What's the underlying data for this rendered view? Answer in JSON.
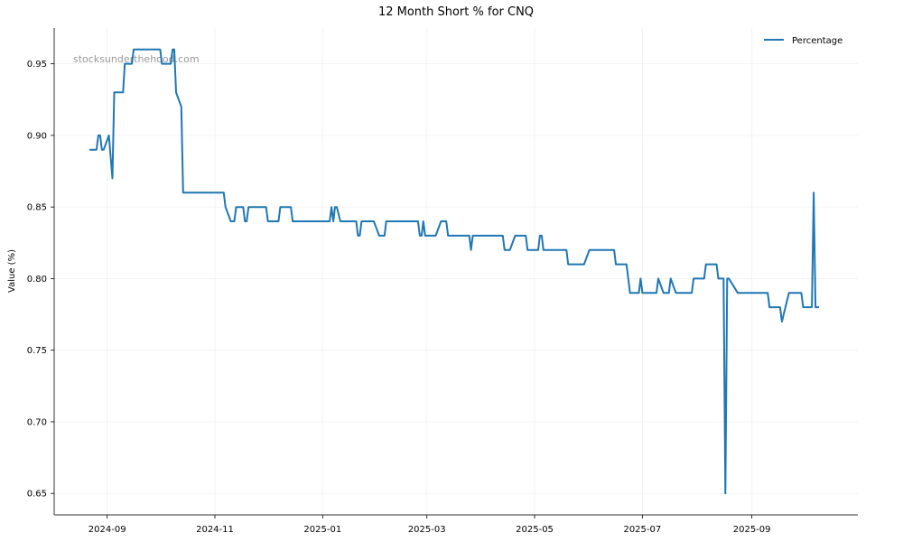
{
  "chart_data": {
    "type": "line",
    "title": "12 Month Short % for CNQ",
    "xlabel": "",
    "ylabel": "Value (%)",
    "watermark": "stocksunderthehood.com",
    "xlim": [
      "2024-08-02",
      "2025-10-31"
    ],
    "ylim": [
      0.635,
      0.975
    ],
    "x_ticks": [
      {
        "date": "2024-09-01",
        "label": "2024-09"
      },
      {
        "date": "2024-11-01",
        "label": "2024-11"
      },
      {
        "date": "2025-01-01",
        "label": "2025-01"
      },
      {
        "date": "2025-03-01",
        "label": "2025-03"
      },
      {
        "date": "2025-05-01",
        "label": "2025-05"
      },
      {
        "date": "2025-07-01",
        "label": "2025-07"
      },
      {
        "date": "2025-09-01",
        "label": "2025-09"
      }
    ],
    "y_ticks": [
      {
        "value": 0.65,
        "label": "0.65"
      },
      {
        "value": 0.7,
        "label": "0.70"
      },
      {
        "value": 0.75,
        "label": "0.75"
      },
      {
        "value": 0.8,
        "label": "0.80"
      },
      {
        "value": 0.85,
        "label": "0.85"
      },
      {
        "value": 0.9,
        "label": "0.90"
      },
      {
        "value": 0.95,
        "label": "0.95"
      }
    ],
    "grid": true,
    "legend_position": "top-right",
    "series": [
      {
        "name": "Percentage",
        "color": "#1f77b4",
        "points": [
          [
            "2024-08-22",
            0.89
          ],
          [
            "2024-08-26",
            0.89
          ],
          [
            "2024-08-27",
            0.9
          ],
          [
            "2024-08-28",
            0.9
          ],
          [
            "2024-08-29",
            0.89
          ],
          [
            "2024-08-30",
            0.89
          ],
          [
            "2024-09-02",
            0.9
          ],
          [
            "2024-09-04",
            0.87
          ],
          [
            "2024-09-05",
            0.93
          ],
          [
            "2024-09-10",
            0.93
          ],
          [
            "2024-09-11",
            0.95
          ],
          [
            "2024-09-15",
            0.95
          ],
          [
            "2024-09-16",
            0.96
          ],
          [
            "2024-10-01",
            0.96
          ],
          [
            "2024-10-02",
            0.95
          ],
          [
            "2024-10-07",
            0.95
          ],
          [
            "2024-10-08",
            0.96
          ],
          [
            "2024-10-09",
            0.96
          ],
          [
            "2024-10-10",
            0.93
          ],
          [
            "2024-10-13",
            0.92
          ],
          [
            "2024-10-14",
            0.86
          ],
          [
            "2024-11-06",
            0.86
          ],
          [
            "2024-11-07",
            0.85
          ],
          [
            "2024-11-10",
            0.84
          ],
          [
            "2024-11-12",
            0.84
          ],
          [
            "2024-11-13",
            0.85
          ],
          [
            "2024-11-17",
            0.85
          ],
          [
            "2024-11-18",
            0.84
          ],
          [
            "2024-11-19",
            0.84
          ],
          [
            "2024-11-20",
            0.85
          ],
          [
            "2024-11-30",
            0.85
          ],
          [
            "2024-12-01",
            0.84
          ],
          [
            "2024-12-07",
            0.84
          ],
          [
            "2024-12-08",
            0.85
          ],
          [
            "2024-12-14",
            0.85
          ],
          [
            "2024-12-15",
            0.84
          ],
          [
            "2025-01-05",
            0.84
          ],
          [
            "2025-01-06",
            0.85
          ],
          [
            "2025-01-07",
            0.84
          ],
          [
            "2025-01-08",
            0.85
          ],
          [
            "2025-01-09",
            0.85
          ],
          [
            "2025-01-11",
            0.84
          ],
          [
            "2025-01-20",
            0.84
          ],
          [
            "2025-01-21",
            0.83
          ],
          [
            "2025-01-22",
            0.83
          ],
          [
            "2025-01-23",
            0.84
          ],
          [
            "2025-01-30",
            0.84
          ],
          [
            "2025-02-02",
            0.83
          ],
          [
            "2025-02-05",
            0.83
          ],
          [
            "2025-02-06",
            0.84
          ],
          [
            "2025-02-24",
            0.84
          ],
          [
            "2025-02-25",
            0.83
          ],
          [
            "2025-02-26",
            0.83
          ],
          [
            "2025-02-27",
            0.84
          ],
          [
            "2025-02-28",
            0.83
          ],
          [
            "2025-03-06",
            0.83
          ],
          [
            "2025-03-09",
            0.84
          ],
          [
            "2025-03-12",
            0.84
          ],
          [
            "2025-03-13",
            0.83
          ],
          [
            "2025-03-25",
            0.83
          ],
          [
            "2025-03-26",
            0.82
          ],
          [
            "2025-03-27",
            0.83
          ],
          [
            "2025-04-13",
            0.83
          ],
          [
            "2025-04-14",
            0.82
          ],
          [
            "2025-04-17",
            0.82
          ],
          [
            "2025-04-20",
            0.83
          ],
          [
            "2025-04-26",
            0.83
          ],
          [
            "2025-04-27",
            0.82
          ],
          [
            "2025-05-03",
            0.82
          ],
          [
            "2025-05-04",
            0.83
          ],
          [
            "2025-05-05",
            0.83
          ],
          [
            "2025-05-06",
            0.82
          ],
          [
            "2025-05-19",
            0.82
          ],
          [
            "2025-05-20",
            0.81
          ],
          [
            "2025-05-29",
            0.81
          ],
          [
            "2025-06-01",
            0.82
          ],
          [
            "2025-06-15",
            0.82
          ],
          [
            "2025-06-16",
            0.81
          ],
          [
            "2025-06-22",
            0.81
          ],
          [
            "2025-06-24",
            0.79
          ],
          [
            "2025-06-29",
            0.79
          ],
          [
            "2025-06-30",
            0.8
          ],
          [
            "2025-07-01",
            0.79
          ],
          [
            "2025-07-09",
            0.79
          ],
          [
            "2025-07-10",
            0.8
          ],
          [
            "2025-07-13",
            0.79
          ],
          [
            "2025-07-16",
            0.79
          ],
          [
            "2025-07-17",
            0.8
          ],
          [
            "2025-07-20",
            0.79
          ],
          [
            "2025-07-29",
            0.79
          ],
          [
            "2025-07-30",
            0.8
          ],
          [
            "2025-08-05",
            0.8
          ],
          [
            "2025-08-06",
            0.81
          ],
          [
            "2025-08-12",
            0.81
          ],
          [
            "2025-08-13",
            0.8
          ],
          [
            "2025-08-16",
            0.8
          ],
          [
            "2025-08-17",
            0.65
          ],
          [
            "2025-08-18",
            0.8
          ],
          [
            "2025-08-19",
            0.8
          ],
          [
            "2025-08-24",
            0.79
          ],
          [
            "2025-09-10",
            0.79
          ],
          [
            "2025-09-11",
            0.78
          ],
          [
            "2025-09-17",
            0.78
          ],
          [
            "2025-09-18",
            0.77
          ],
          [
            "2025-09-22",
            0.79
          ],
          [
            "2025-09-29",
            0.79
          ],
          [
            "2025-09-30",
            0.78
          ],
          [
            "2025-10-05",
            0.78
          ],
          [
            "2025-10-06",
            0.86
          ],
          [
            "2025-10-07",
            0.78
          ],
          [
            "2025-10-09",
            0.78
          ]
        ]
      }
    ]
  }
}
